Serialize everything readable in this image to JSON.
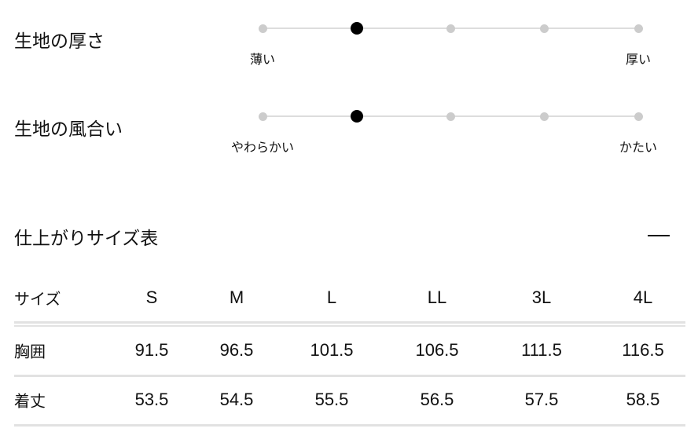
{
  "features": [
    {
      "title": "生地の厚さ",
      "min_label": "薄い",
      "max_label": "厚い",
      "steps": 5,
      "selected": 2
    },
    {
      "title": "生地の風合い",
      "min_label": "やわらかい",
      "max_label": "かたい",
      "steps": 5,
      "selected": 2
    }
  ],
  "size_chart": {
    "title": "仕上がりサイズ表",
    "toggle_icon": "minus-icon",
    "header_label": "サイズ",
    "sizes": [
      "S",
      "M",
      "L",
      "LL",
      "3L",
      "4L"
    ],
    "rows": [
      {
        "label": "胸囲",
        "values": [
          "91.5",
          "96.5",
          "101.5",
          "106.5",
          "111.5",
          "116.5"
        ]
      },
      {
        "label": "着丈",
        "values": [
          "53.5",
          "54.5",
          "55.5",
          "56.5",
          "57.5",
          "58.5"
        ]
      }
    ]
  }
}
